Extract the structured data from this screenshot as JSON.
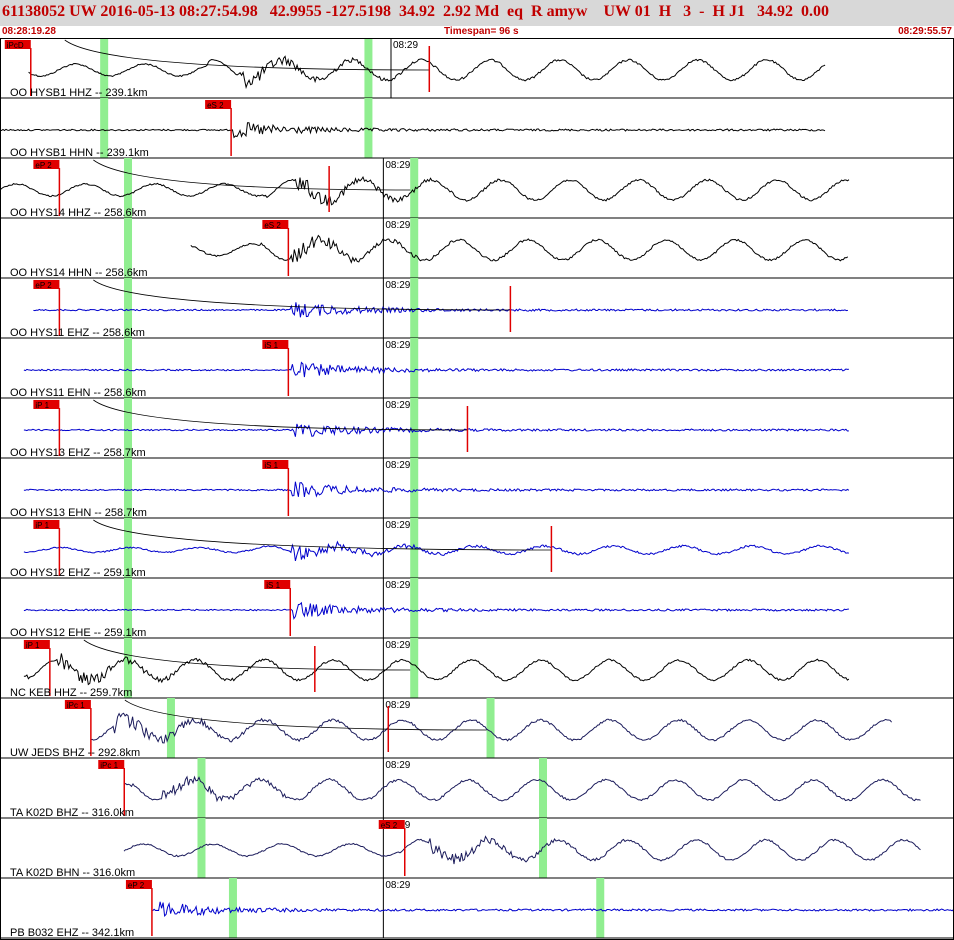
{
  "header": {
    "event_line": "61138052 UW 2016-05-13 08:27:54.98   42.9955 -127.5198  34.92  2.92 Md  eq  R amyw    UW 01  H   3  -  H J1   34.92  0.00"
  },
  "subheader": {
    "start_time": "08:28:19.28",
    "timespan": "Timespan=  96 s",
    "end_time": "08:29:55.57"
  },
  "time_mark_label": "08:29",
  "colors": {
    "header_bg": "#d8d8d8",
    "header_text": "#c00000",
    "trace_broadband": "#000000",
    "trace_short_period": "#0000cc",
    "trace_dark": "#1c1c5c",
    "pick_box": "#e00000",
    "time_band": "#90ee90"
  },
  "traces": [
    {
      "label": "OO HYSB1 HHZ -- 239.1km",
      "pick": "iPcD",
      "pick_pos": 0.005,
      "pick2_pos": 0.45,
      "color": "black",
      "start": 0.03,
      "end": 0.865,
      "burst": 0.25,
      "band1": 0.105,
      "band2": 0.382,
      "time_pos": 0.435,
      "lowfreq": true,
      "curve": true
    },
    {
      "label": "OO HYSB1 HHN -- 239.1km",
      "pick": "eS 2",
      "pick_pos": 0.215,
      "pick2_pos": -1,
      "color": "black",
      "start": 0.0,
      "end": 0.865,
      "burst": 0.245,
      "band1": 0.105,
      "band2": 0.382,
      "time_pos": -1,
      "lowfreq": false,
      "curve": false
    },
    {
      "label": "OO HYS14 HHZ -- 258.6km",
      "pick": "eP 2",
      "pick_pos": 0.035,
      "pick2_pos": 0.345,
      "color": "black",
      "start": 0.0,
      "end": 0.89,
      "burst": 0.31,
      "band1": 0.13,
      "band2": 0.43,
      "time_pos": 0.427,
      "lowfreq": true,
      "curve": true
    },
    {
      "label": "OO HYS14 HHN -- 258.6km",
      "pick": "eS 2",
      "pick_pos": 0.275,
      "pick2_pos": -1,
      "color": "black",
      "start": 0.2,
      "end": 0.89,
      "burst": 0.305,
      "band1": 0.13,
      "band2": 0.43,
      "time_pos": 0.427,
      "lowfreq": true,
      "curve": false
    },
    {
      "label": "OO HYS11 EHZ -- 258.6km",
      "pick": "eP 2",
      "pick_pos": 0.035,
      "pick2_pos": 0.535,
      "color": "blue",
      "start": 0.035,
      "end": 0.89,
      "burst": 0.305,
      "band1": 0.13,
      "band2": 0.43,
      "time_pos": 0.427,
      "lowfreq": false,
      "curve": true
    },
    {
      "label": "OO HYS11 EHN -- 258.6km",
      "pick": "iS 1",
      "pick_pos": 0.275,
      "pick2_pos": -1,
      "color": "blue",
      "start": 0.025,
      "end": 0.89,
      "burst": 0.305,
      "band1": 0.13,
      "band2": 0.43,
      "time_pos": 0.427,
      "lowfreq": false,
      "curve": false
    },
    {
      "label": "OO HYS13 EHZ -- 258.7km",
      "pick": "iP 1",
      "pick_pos": 0.035,
      "pick2_pos": 0.49,
      "color": "blue",
      "start": 0.025,
      "end": 0.89,
      "burst": 0.305,
      "band1": 0.13,
      "band2": 0.43,
      "time_pos": 0.427,
      "lowfreq": false,
      "curve": true
    },
    {
      "label": "OO HYS13 EHN -- 258.7km",
      "pick": "iS 1",
      "pick_pos": 0.275,
      "pick2_pos": -1,
      "color": "blue",
      "start": 0.025,
      "end": 0.89,
      "burst": 0.305,
      "band1": 0.13,
      "band2": 0.43,
      "time_pos": 0.427,
      "lowfreq": false,
      "curve": false
    },
    {
      "label": "OO HYS12 EHZ -- 259.1km",
      "pick": "iP 1",
      "pick_pos": 0.035,
      "pick2_pos": 0.578,
      "color": "blue",
      "start": 0.025,
      "end": 0.89,
      "burst": 0.305,
      "band1": 0.13,
      "band2": 0.43,
      "time_pos": 0.427,
      "lowfreq": true,
      "curve": true
    },
    {
      "label": "OO HYS12 EHE -- 259.1km",
      "pick": "iS 1",
      "pick_pos": 0.277,
      "pick2_pos": -1,
      "color": "blue",
      "start": 0.025,
      "end": 0.89,
      "burst": 0.305,
      "band1": 0.13,
      "band2": 0.43,
      "time_pos": 0.427,
      "lowfreq": false,
      "curve": false
    },
    {
      "label": "NC KEB HHZ -- 259.7km",
      "pick": "iP 1",
      "pick_pos": 0.025,
      "pick2_pos": 0.33,
      "color": "black",
      "start": 0.025,
      "end": 0.89,
      "burst": 0.06,
      "band1": 0.13,
      "band2": 0.43,
      "time_pos": 0.427,
      "lowfreq": true,
      "curve": true
    },
    {
      "label": "UW JEDS BHZ -- 292.8km",
      "pick": "iPc 1",
      "pick_pos": 0.068,
      "pick2_pos": 0.407,
      "color": "darkblue",
      "start": 0.095,
      "end": 0.935,
      "burst": 0.12,
      "band1": 0.175,
      "band2": 0.51,
      "time_pos": 0.427,
      "lowfreq": true,
      "curve": true
    },
    {
      "label": "TA K02D BHZ -- 316.0km",
      "pick": "iPc 1",
      "pick_pos": 0.103,
      "pick2_pos": -1,
      "color": "darkblue",
      "start": 0.13,
      "end": 0.965,
      "burst": 0.17,
      "band1": 0.207,
      "band2": 0.565,
      "time_pos": 0.427,
      "lowfreq": true,
      "curve": false
    },
    {
      "label": "TA K02D BHN -- 316.0km",
      "pick": "eS 2",
      "pick_pos": 0.397,
      "pick2_pos": -1,
      "color": "darkblue",
      "start": 0.13,
      "end": 0.965,
      "burst": 0.45,
      "band1": 0.207,
      "band2": 0.565,
      "time_pos": 0.427,
      "lowfreq": true,
      "curve": false
    },
    {
      "label": "PB B032 EHZ -- 342.1km",
      "pick": "eP 2",
      "pick_pos": 0.132,
      "pick2_pos": -1,
      "color": "blue",
      "start": 0.16,
      "end": 1.0,
      "burst": 0.165,
      "band1": 0.24,
      "band2": 0.625,
      "time_pos": 0.427,
      "lowfreq": false,
      "curve": false
    }
  ]
}
